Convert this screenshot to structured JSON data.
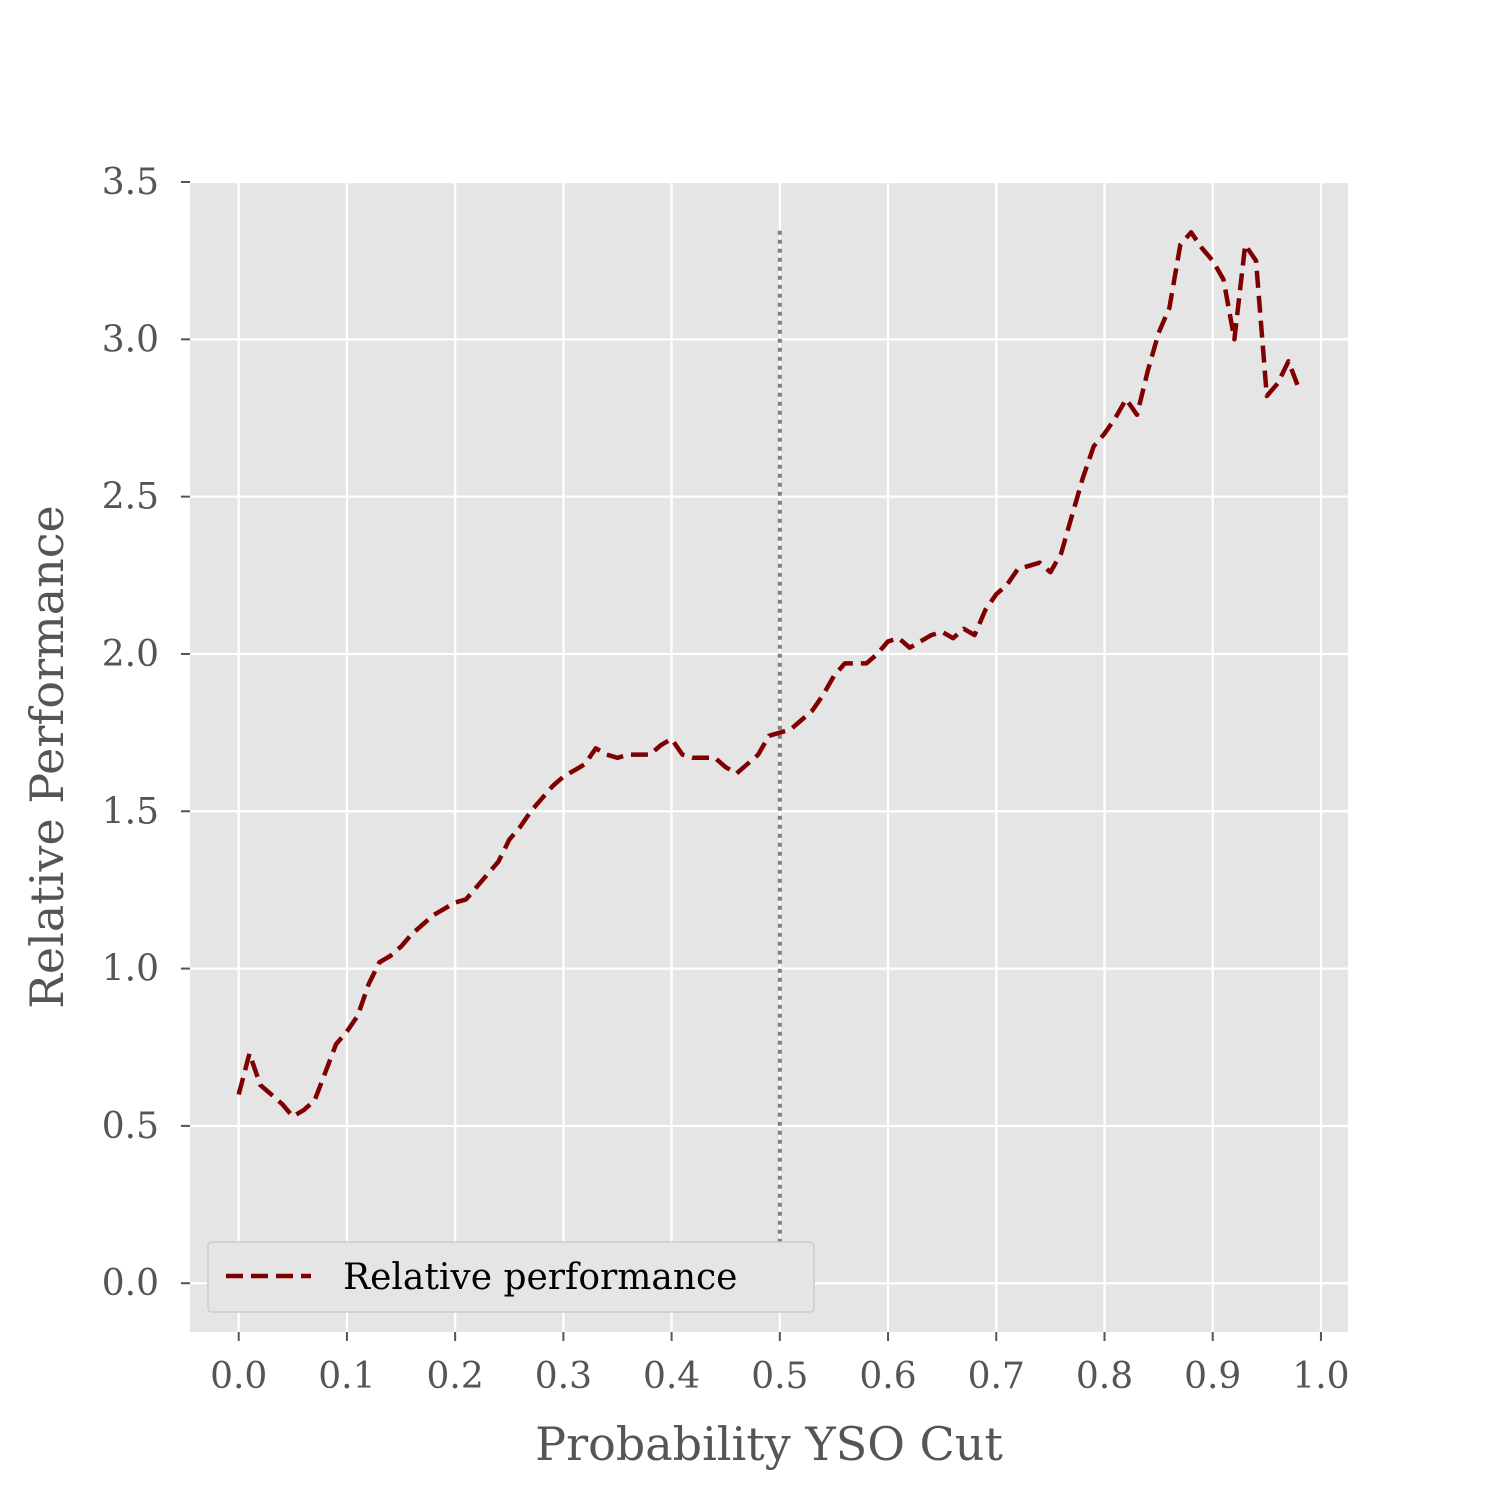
{
  "chart_data": {
    "type": "line",
    "xlabel": "Probability YSO Cut",
    "ylabel": "Relative Performance",
    "xlim": [
      -0.045,
      1.025
    ],
    "ylim": [
      -0.155,
      3.5
    ],
    "xticks": [
      "0.0",
      "0.1",
      "0.2",
      "0.3",
      "0.4",
      "0.5",
      "0.6",
      "0.7",
      "0.8",
      "0.9",
      "1.0"
    ],
    "yticks": [
      "0.0",
      "0.5",
      "1.0",
      "1.5",
      "2.0",
      "2.5",
      "3.0",
      "3.5"
    ],
    "grid": true,
    "legend_position": "lower-left",
    "background_color": "#e5e5e5",
    "series": [
      {
        "name": "Relative performance",
        "color": "#800000",
        "style": "dashed",
        "x": [
          0.0,
          0.01,
          0.02,
          0.03,
          0.04,
          0.05,
          0.06,
          0.07,
          0.08,
          0.09,
          0.1,
          0.11,
          0.12,
          0.13,
          0.14,
          0.15,
          0.16,
          0.17,
          0.18,
          0.19,
          0.2,
          0.21,
          0.22,
          0.23,
          0.24,
          0.25,
          0.26,
          0.27,
          0.28,
          0.29,
          0.3,
          0.31,
          0.32,
          0.33,
          0.34,
          0.35,
          0.36,
          0.37,
          0.38,
          0.39,
          0.4,
          0.41,
          0.42,
          0.43,
          0.44,
          0.45,
          0.46,
          0.47,
          0.48,
          0.49,
          0.5,
          0.51,
          0.52,
          0.53,
          0.54,
          0.55,
          0.56,
          0.57,
          0.58,
          0.59,
          0.6,
          0.61,
          0.62,
          0.63,
          0.64,
          0.65,
          0.66,
          0.67,
          0.68,
          0.69,
          0.7,
          0.71,
          0.72,
          0.73,
          0.74,
          0.75,
          0.76,
          0.77,
          0.78,
          0.79,
          0.8,
          0.81,
          0.82,
          0.83,
          0.84,
          0.85,
          0.86,
          0.87,
          0.88,
          0.89,
          0.9,
          0.91,
          0.92,
          0.93,
          0.94,
          0.95,
          0.96,
          0.97,
          0.98
        ],
        "y": [
          0.6,
          0.73,
          0.63,
          0.6,
          0.57,
          0.53,
          0.55,
          0.58,
          0.67,
          0.76,
          0.8,
          0.85,
          0.95,
          1.02,
          1.04,
          1.07,
          1.11,
          1.14,
          1.17,
          1.19,
          1.21,
          1.22,
          1.26,
          1.3,
          1.34,
          1.41,
          1.45,
          1.5,
          1.54,
          1.58,
          1.61,
          1.63,
          1.65,
          1.7,
          1.68,
          1.67,
          1.68,
          1.68,
          1.68,
          1.71,
          1.73,
          1.68,
          1.67,
          1.67,
          1.67,
          1.64,
          1.62,
          1.65,
          1.68,
          1.74,
          1.75,
          1.76,
          1.79,
          1.82,
          1.87,
          1.93,
          1.97,
          1.97,
          1.97,
          2.0,
          2.04,
          2.05,
          2.02,
          2.04,
          2.06,
          2.07,
          2.05,
          2.08,
          2.06,
          2.14,
          2.19,
          2.22,
          2.27,
          2.28,
          2.29,
          2.26,
          2.32,
          2.44,
          2.56,
          2.66,
          2.7,
          2.75,
          2.81,
          2.76,
          2.9,
          3.02,
          3.1,
          3.3,
          3.34,
          3.29,
          3.25,
          3.19,
          3.0,
          3.3,
          3.25,
          2.82,
          2.86,
          2.93,
          2.84
        ]
      }
    ],
    "reference_lines": [
      {
        "orientation": "vertical",
        "x": 0.5,
        "y_from": 0.1,
        "y_to": 3.35,
        "color": "#808080",
        "style": "dotted"
      }
    ]
  }
}
